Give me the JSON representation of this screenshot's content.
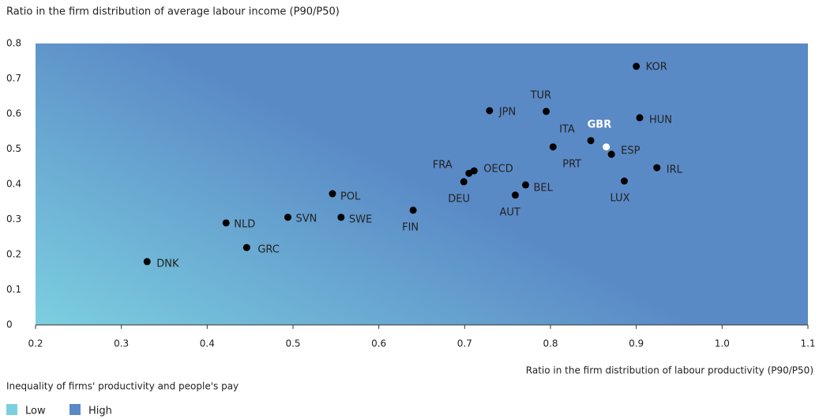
{
  "chart_data": {
    "type": "scatter",
    "title": "Ratio in the firm distribution of average labour income (P90/P50)",
    "x_label": "Ratio in the firm distribution of labour productivity (P90/P50)",
    "legend_title": "Inequality of firms' productivity and people's pay",
    "legend": [
      {
        "name": "Low",
        "color": "#7ccfe0"
      },
      {
        "name": "High",
        "color": "#5a8ac6"
      }
    ],
    "labels": [
      "DNK",
      "NLD",
      "GRC",
      "SVN",
      "POL",
      "SWE",
      "FIN",
      "DEU",
      "FRA",
      "OECD",
      "JPN",
      "TUR",
      "AUT",
      "BEL",
      "PRT",
      "ITA",
      "GBR",
      "ESP",
      "LUX",
      "KOR",
      "HUN",
      "IRL"
    ],
    "x": [
      0.33,
      0.422,
      0.446,
      0.494,
      0.546,
      0.556,
      0.64,
      0.699,
      0.705,
      0.711,
      0.729,
      0.795,
      0.759,
      0.771,
      0.803,
      0.847,
      0.865,
      0.871,
      0.886,
      0.9,
      0.904,
      0.924
    ],
    "values": [
      0.18,
      0.29,
      0.22,
      0.306,
      0.373,
      0.306,
      0.326,
      0.407,
      0.431,
      0.438,
      0.609,
      0.607,
      0.369,
      0.398,
      0.506,
      0.524,
      0.506,
      0.485,
      0.409,
      0.735,
      0.589,
      0.447
    ],
    "colors": [
      "#000",
      "#000",
      "#000",
      "#000",
      "#000",
      "#000",
      "#000",
      "#000",
      "#000",
      "#000",
      "#000",
      "#000",
      "#000",
      "#000",
      "#000",
      "#000",
      "#fff",
      "#000",
      "#000",
      "#000",
      "#000",
      "#000"
    ],
    "xlim": [
      0.2,
      1.1
    ],
    "ylim": [
      0,
      0.8
    ],
    "xticks": [
      0.2,
      0.3,
      0.4,
      0.5,
      0.6,
      0.7,
      0.8,
      0.9,
      {
        "value": 1,
        "label": "1.0"
      },
      1.1
    ],
    "yticks": [
      0,
      0.1,
      0.2,
      0.3,
      0.4,
      0.5,
      0.6,
      0.7,
      0.8
    ]
  }
}
